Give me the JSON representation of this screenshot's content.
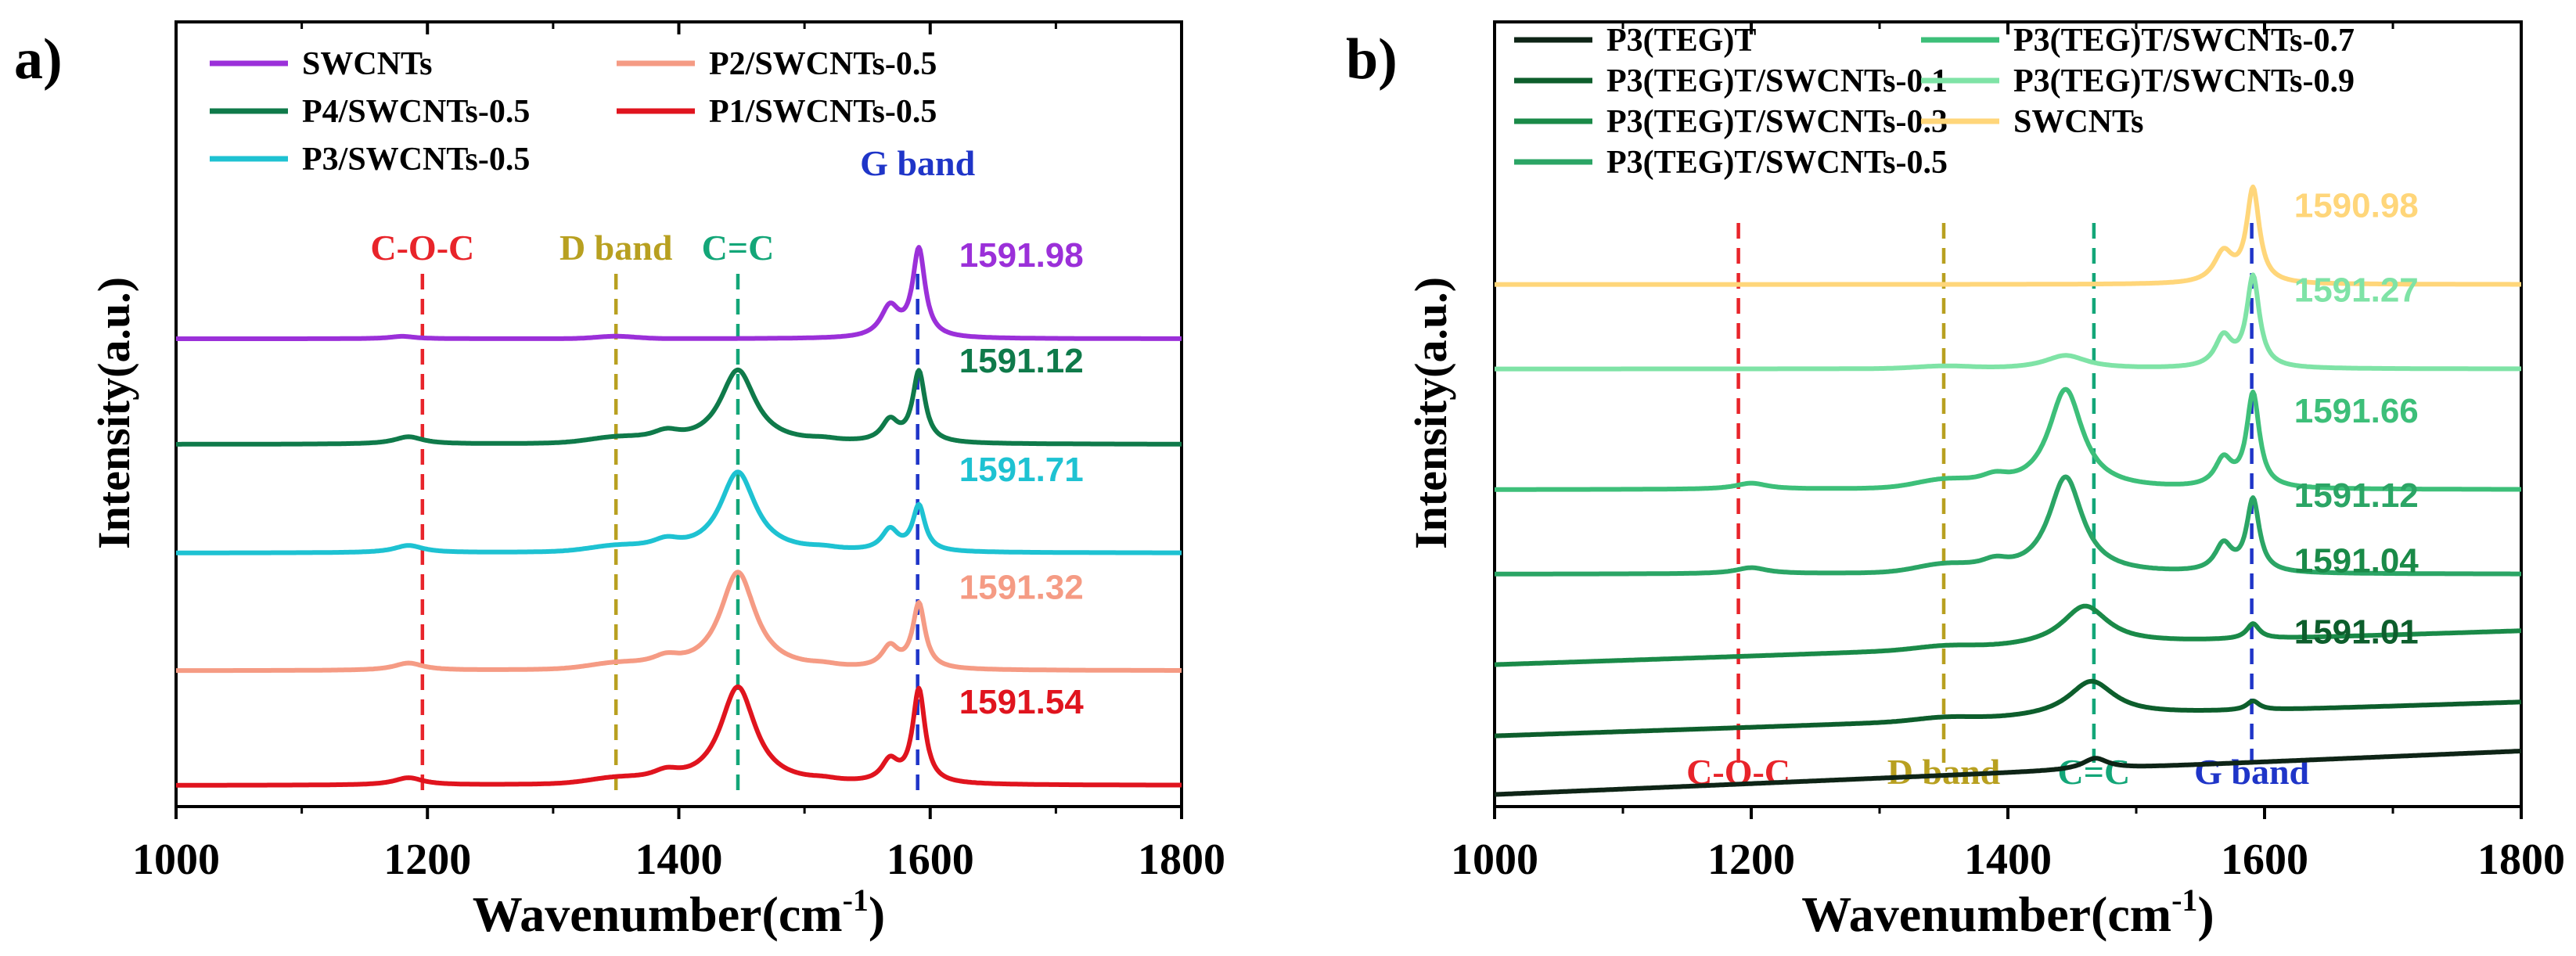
{
  "chart_data": [
    {
      "panel_label": "a)",
      "type": "line",
      "title": "",
      "xlabel": "Wavenumber(cm",
      "xlabel_sup": "-1",
      "xlabel_end": ")",
      "ylabel": "Intensity(a.u.)",
      "xlim": [
        1000,
        1800
      ],
      "xticks": [
        "1000",
        "1200",
        "1400",
        "1600",
        "1800"
      ],
      "xtick_values": [
        1000,
        1200,
        1400,
        1600,
        1800
      ],
      "yticks": [],
      "legend_position": "top, two columns",
      "legend": [
        {
          "name": "SWCNTs",
          "color": "#9b30d9"
        },
        {
          "name": "P2/SWCNTs-0.5",
          "color": "#f59b84"
        },
        {
          "name": "P4/SWCNTs-0.5",
          "color": "#0f7a4a"
        },
        {
          "name": "P1/SWCNTs-0.5",
          "color": "#e0141e"
        },
        {
          "name": "P3/SWCNTs-0.5",
          "color": "#1ec2d2"
        }
      ],
      "reference_lines": [
        {
          "label": "C-O-C",
          "x": 1196,
          "color": "#e8242a",
          "label_at": "top"
        },
        {
          "label": "D band",
          "x": 1350,
          "color": "#b8a020",
          "label_at": "top"
        },
        {
          "label": "C=C",
          "x": 1447,
          "color": "#13a678",
          "label_at": "top"
        },
        {
          "label": "G band",
          "x": 1590,
          "color": "#1f35c8",
          "label_at": "top"
        }
      ],
      "series": [
        {
          "name": "SWCNTs",
          "color": "#9b30d9",
          "baseline": 0.775,
          "slope": 0,
          "d_band": 0.004,
          "d_width": 22,
          "peaks": [
            [
              1180,
              0.004,
              12
            ],
            [
              1568,
              0.05,
              9
            ],
            [
              1591,
              0.145,
              6
            ]
          ],
          "annotation": "1591.98"
        },
        {
          "name": "P4/SWCNTs-0.5",
          "color": "#0f7a4a",
          "baseline": 0.6,
          "slope": 0,
          "d_band": 0.008,
          "d_width": 30,
          "peaks": [
            [
              1185,
              0.012,
              14
            ],
            [
              1390,
              0.015,
              14
            ],
            [
              1447,
              0.122,
              17
            ],
            [
              1515,
              0.004,
              15
            ],
            [
              1568,
              0.035,
              8
            ],
            [
              1591,
              0.117,
              6
            ]
          ],
          "annotation": "1591.12"
        },
        {
          "name": "P3/SWCNTs-0.5",
          "color": "#1ec2d2",
          "baseline": 0.42,
          "slope": 0,
          "d_band": 0.008,
          "d_width": 30,
          "peaks": [
            [
              1185,
              0.012,
              14
            ],
            [
              1390,
              0.015,
              14
            ],
            [
              1447,
              0.133,
              17
            ],
            [
              1515,
              0.004,
              15
            ],
            [
              1568,
              0.035,
              8
            ],
            [
              1591,
              0.075,
              6
            ]
          ],
          "annotation": "1591.71"
        },
        {
          "name": "P2/SWCNTs-0.5",
          "color": "#f59b84",
          "baseline": 0.225,
          "slope": 0,
          "d_band": 0.008,
          "d_width": 30,
          "peaks": [
            [
              1185,
              0.012,
              14
            ],
            [
              1390,
              0.015,
              14
            ],
            [
              1447,
              0.162,
              17
            ],
            [
              1515,
              0.004,
              15
            ],
            [
              1568,
              0.035,
              8
            ],
            [
              1591,
              0.107,
              6
            ]
          ],
          "annotation": "1591.32"
        },
        {
          "name": "P1/SWCNTs-0.5",
          "color": "#e0141e",
          "baseline": 0.035,
          "slope": 0,
          "d_band": 0.008,
          "d_width": 30,
          "peaks": [
            [
              1185,
              0.012,
              14
            ],
            [
              1390,
              0.015,
              14
            ],
            [
              1447,
              0.162,
              17
            ],
            [
              1515,
              0.004,
              15
            ],
            [
              1568,
              0.035,
              8
            ],
            [
              1591,
              0.155,
              6
            ]
          ],
          "annotation": "1591.54"
        }
      ],
      "ylim": [
        0,
        1.3
      ]
    },
    {
      "panel_label": "b)",
      "type": "line",
      "title": "",
      "xlabel": "Wavenumber(cm",
      "xlabel_sup": "-1",
      "xlabel_end": ")",
      "ylabel": "Intensity(a.u.)",
      "xlim": [
        1000,
        1800
      ],
      "xticks": [
        "1000",
        "1200",
        "1400",
        "1600",
        "1800"
      ],
      "xtick_values": [
        1000,
        1200,
        1400,
        1600,
        1800
      ],
      "yticks": [],
      "legend_position": "top, two columns",
      "legend": [
        {
          "name": "P3(TEG)T",
          "color": "#0e2416"
        },
        {
          "name": "P3(TEG)T/SWCNTs-0.7",
          "color": "#3dbf79"
        },
        {
          "name": "P3(TEG)T/SWCNTs-0.1",
          "color": "#0d5e2c"
        },
        {
          "name": "P3(TEG)T/SWCNTs-0.9",
          "color": "#7fe3a6"
        },
        {
          "name": "P3(TEG)T/SWCNTs-0.3",
          "color": "#1a8a48"
        },
        {
          "name": "SWCNTs",
          "color": "#ffd67a"
        },
        {
          "name": "P3(TEG)T/SWCNTs-0.5",
          "color": "#2ba565"
        }
      ],
      "reference_lines": [
        {
          "label": "C-O-C",
          "x": 1190,
          "color": "#e8242a",
          "label_at": "bottom"
        },
        {
          "label": "D band",
          "x": 1350,
          "color": "#b8a020",
          "label_at": "bottom"
        },
        {
          "label": "C=C",
          "x": 1467,
          "color": "#13a678",
          "label_at": "bottom"
        },
        {
          "label": "G band",
          "x": 1590,
          "color": "#1f35c8",
          "label_at": "bottom"
        }
      ],
      "series": [
        {
          "name": "SWCNTs",
          "color": "#ffd67a",
          "baseline": 0.865,
          "slope": 0,
          "d_band": 0.0,
          "d_width": 20,
          "peaks": [
            [
              1568,
              0.05,
              9
            ],
            [
              1591,
              0.155,
              6
            ]
          ],
          "annotation": "1590.98"
        },
        {
          "name": "P3(TEG)T/SWCNTs-0.9",
          "color": "#7fe3a6",
          "baseline": 0.725,
          "slope": 0,
          "d_band": 0.004,
          "d_width": 30,
          "peaks": [
            [
              1445,
              0.022,
              20
            ],
            [
              1568,
              0.05,
              8
            ],
            [
              1591,
              0.15,
              6
            ]
          ],
          "annotation": "1591.27"
        },
        {
          "name": "P3(TEG)T/SWCNTs-0.7",
          "color": "#3dbf79",
          "baseline": 0.525,
          "slope": 0,
          "d_band": 0.012,
          "d_width": 30,
          "peaks": [
            [
              1200,
              0.01,
              15
            ],
            [
              1390,
              0.015,
              14
            ],
            [
              1445,
              0.165,
              16
            ],
            [
              1568,
              0.045,
              8
            ],
            [
              1591,
              0.155,
              6
            ]
          ],
          "annotation": "1591.66"
        },
        {
          "name": "P3(TEG)T/SWCNTs-0.5",
          "color": "#2ba565",
          "baseline": 0.385,
          "slope": 0,
          "d_band": 0.012,
          "d_width": 30,
          "peaks": [
            [
              1200,
              0.01,
              15
            ],
            [
              1390,
              0.015,
              14
            ],
            [
              1445,
              0.16,
              16
            ],
            [
              1568,
              0.045,
              8
            ],
            [
              1591,
              0.12,
              6
            ]
          ],
          "annotation": "1591.12"
        },
        {
          "name": "P3(TEG)T/SWCNTs-0.3",
          "color": "#1a8a48",
          "baseline": 0.235,
          "slope": 7e-05,
          "d_band": 0.005,
          "d_width": 30,
          "peaks": [
            [
              1460,
              0.065,
              22
            ],
            [
              1591,
              0.025,
              6
            ]
          ],
          "annotation": "1591.04"
        },
        {
          "name": "P3(TEG)T/SWCNTs-0.1",
          "color": "#0d5e2c",
          "baseline": 0.117,
          "slope": 7e-05,
          "d_band": 0.005,
          "d_width": 30,
          "peaks": [
            [
              1465,
              0.058,
              22
            ],
            [
              1591,
              0.015,
              6
            ]
          ],
          "annotation": "1591.01"
        },
        {
          "name": "P3(TEG)T",
          "color": "#0e2416",
          "baseline": 0.02,
          "slope": 9e-05,
          "d_band": 0.0,
          "d_width": 30,
          "peaks": [
            [
              1468,
              0.018,
              12
            ]
          ],
          "annotation": ""
        }
      ],
      "ylim": [
        0,
        1.3
      ]
    }
  ]
}
